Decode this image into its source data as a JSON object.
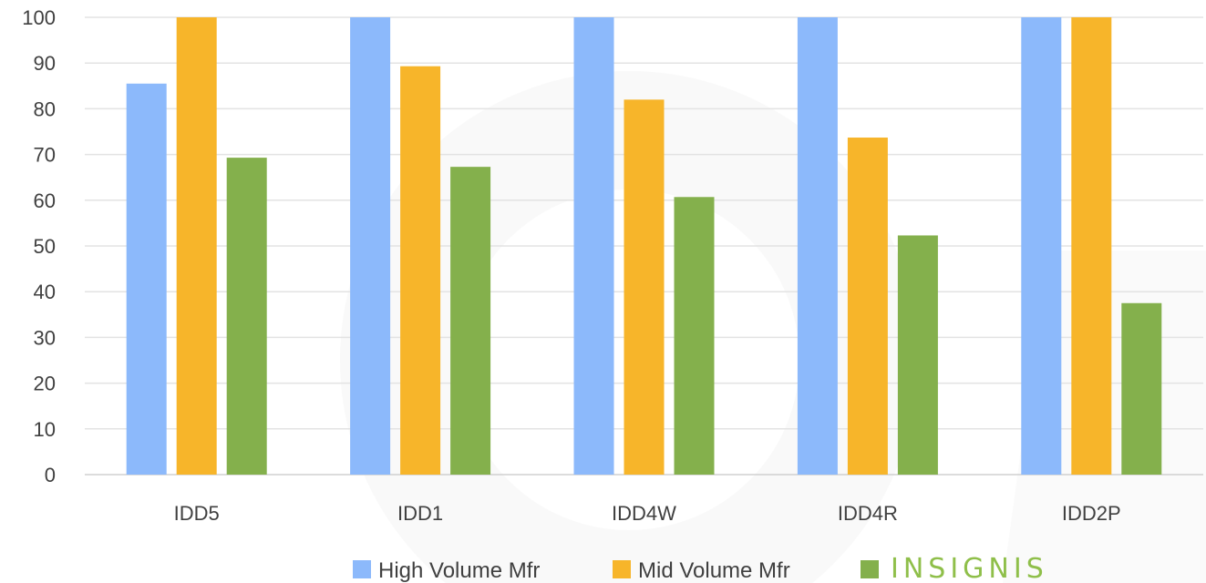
{
  "chart_data": {
    "type": "bar",
    "categories": [
      "IDD5",
      "IDD1",
      "IDD4W",
      "IDD4R",
      "IDD2P"
    ],
    "series": [
      {
        "name": "High Volume Mfr",
        "color": "#8cb9fb",
        "values": [
          85.5,
          100,
          100,
          100,
          100
        ]
      },
      {
        "name": "Mid Volume Mfr",
        "color": "#f7b52a",
        "values": [
          100,
          89.3,
          82,
          73.7,
          100
        ]
      },
      {
        "name": "INSIGNIS",
        "color": "#84b04c",
        "values": [
          69.3,
          67.3,
          60.7,
          52.3,
          37.5
        ]
      }
    ],
    "ylim": [
      0,
      100
    ],
    "yticks": [
      "0",
      "10",
      "20",
      "30",
      "40",
      "50",
      "60",
      "70",
      "80",
      "90",
      "100"
    ],
    "grid": true,
    "legend_position": "bottom",
    "legend_brand_color": "#8fbf4a"
  }
}
